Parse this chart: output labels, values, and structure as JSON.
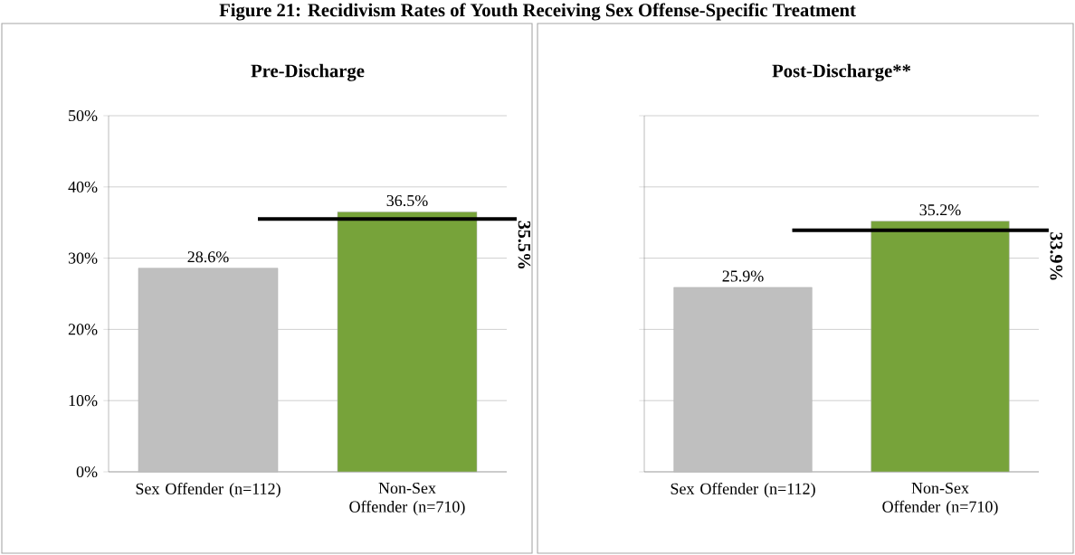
{
  "chart_data": [
    {
      "type": "bar",
      "title": "Figure 21: Recidivism Rates of Youth Receiving Sex Offense-Specific Treatment",
      "subtitle": "Pre-Discharge",
      "categories": [
        "Sex Offender (n=112)",
        "Non-Sex Offender (n=710)"
      ],
      "values": [
        28.6,
        36.5
      ],
      "colors": [
        "#bfbfbf",
        "#77a33a"
      ],
      "value_labels": [
        "28.6%",
        "36.5%"
      ],
      "ylim": [
        0,
        50
      ],
      "yticks": [
        {
          "value": 0,
          "label": "0%"
        },
        {
          "value": 10,
          "label": "10%"
        },
        {
          "value": 20,
          "label": "20%"
        },
        {
          "value": 30,
          "label": "30%"
        },
        {
          "value": 40,
          "label": "40%"
        },
        {
          "value": 50,
          "label": "50%"
        }
      ],
      "grid": "y",
      "ref_lines": [
        {
          "axis": "y",
          "value": 35.5,
          "label": "35.5%",
          "color": "#000000"
        }
      ]
    },
    {
      "type": "bar",
      "subtitle": "Post-Discharge**",
      "categories": [
        "Sex Offender (n=112)",
        "Non-Sex Offender (n=710)"
      ],
      "values": [
        25.9,
        35.2
      ],
      "colors": [
        "#bfbfbf",
        "#77a33a"
      ],
      "value_labels": [
        "25.9%",
        "35.2%"
      ],
      "ylim": [
        0,
        50
      ],
      "yticks": [
        {
          "value": 0,
          "label": null
        },
        {
          "value": 10,
          "label": null
        },
        {
          "value": 20,
          "label": null
        },
        {
          "value": 30,
          "label": null
        },
        {
          "value": 40,
          "label": null
        },
        {
          "value": 50,
          "label": null
        }
      ],
      "grid": "y",
      "tick_labels": "x",
      "ref_lines": [
        {
          "axis": "y",
          "value": 33.9,
          "label": "33.9%",
          "color": "#000000"
        }
      ]
    }
  ]
}
